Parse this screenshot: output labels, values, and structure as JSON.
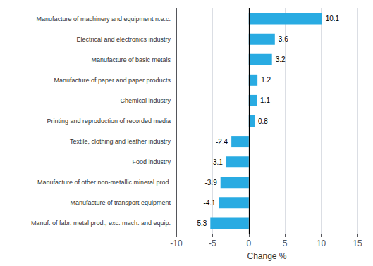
{
  "chart_data": {
    "type": "bar",
    "orientation": "horizontal",
    "categories": [
      "Manuf. of fabr. metal prod., exc. mach. and equip.",
      "Manufacture of transport equipment",
      "Manufacture of other non-metallic mineral prod.",
      "Food industry",
      "Textile, clothing and leather industry",
      "Printing and reproduction of recorded media",
      "Chemical industry",
      "Manufacture of paper and paper products",
      "Manufacture of basic metals",
      "Electrical and electronics industry",
      "Manufacture of machinery and equipment n.e.c."
    ],
    "values": [
      -5.3,
      -4.1,
      -3.9,
      -3.1,
      -2.4,
      0.8,
      1.1,
      1.2,
      3.2,
      3.6,
      10.1
    ],
    "color": "#29abe2",
    "xlabel": "Change %",
    "xlim": [
      -10,
      15
    ],
    "xticks": [
      -10,
      -5,
      0,
      5,
      10,
      15
    ],
    "grid": true,
    "data_labels": true
  }
}
